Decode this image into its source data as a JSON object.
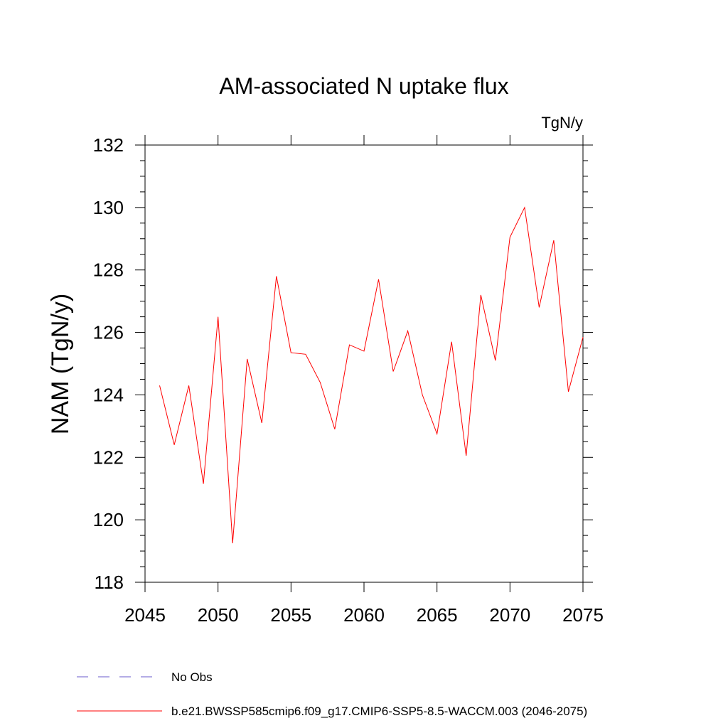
{
  "chart_data": {
    "type": "line",
    "title": "AM-associated N uptake flux",
    "units_label": "TgN/y",
    "ylabel": "NAM  (TgN/y)",
    "xlabel": "",
    "xlim": [
      2045,
      2075
    ],
    "ylim": [
      118,
      132
    ],
    "x_ticks": [
      2045,
      2050,
      2055,
      2060,
      2065,
      2070,
      2075
    ],
    "y_ticks": [
      118,
      120,
      122,
      124,
      126,
      128,
      130,
      132
    ],
    "grid": false,
    "legend_position": "bottom",
    "series": [
      {
        "name": "b.e21.BWSSP585cmip6.f09_g17.CMIP6-SSP5-8.5-WACCM.003 (2046-2075)",
        "color": "#ff0000",
        "style": "solid",
        "x": [
          2046,
          2047,
          2048,
          2049,
          2050,
          2051,
          2052,
          2053,
          2054,
          2055,
          2056,
          2057,
          2058,
          2059,
          2060,
          2061,
          2062,
          2063,
          2064,
          2065,
          2066,
          2067,
          2068,
          2069,
          2070,
          2071,
          2072,
          2073,
          2074,
          2075
        ],
        "values": [
          124.3,
          122.4,
          124.3,
          121.15,
          126.5,
          119.25,
          125.15,
          123.1,
          127.8,
          125.35,
          125.3,
          124.4,
          122.9,
          125.6,
          125.4,
          127.7,
          124.75,
          126.05,
          124.0,
          122.75,
          125.7,
          122.05,
          127.2,
          125.1,
          129.05,
          130.0,
          126.8,
          128.95,
          124.1,
          125.85
        ]
      }
    ],
    "legend": [
      {
        "label": "No Obs",
        "color": "#6a5acd",
        "style": "dashed"
      },
      {
        "label": "b.e21.BWSSP585cmip6.f09_g17.CMIP6-SSP5-8.5-WACCM.003 (2046-2075)",
        "color": "#ff0000",
        "style": "solid"
      }
    ]
  }
}
